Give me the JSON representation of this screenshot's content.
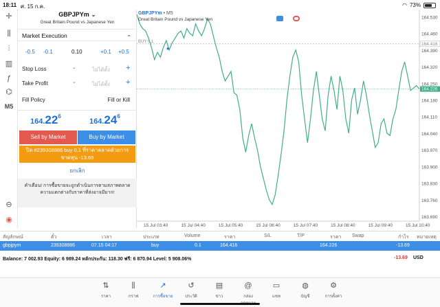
{
  "status": {
    "time": "18:11",
    "date": "ศ. 15 ก.ค.",
    "battery": "73%",
    "battery_level": 0.73
  },
  "tools": [
    {
      "name": "crosshair-icon",
      "glyph": "✛"
    },
    {
      "name": "chart-type-icon",
      "glyph": "⫼"
    },
    {
      "name": "indicators-icon",
      "glyph": "⫶"
    },
    {
      "name": "bars-icon",
      "glyph": "▥"
    },
    {
      "name": "function-icon",
      "glyph": "ƒ"
    },
    {
      "name": "objects-icon",
      "glyph": "⌬"
    },
    {
      "name": "timeframe",
      "glyph": "M5"
    }
  ],
  "order": {
    "symbol": "GBPJPYm",
    "symbol_desc": "Great Britain Pound vs Japanese Yen",
    "execution": "Market Execution",
    "volume_steps": [
      "-0.5",
      "-0.1",
      "0.10",
      "+0.1",
      "+0.5"
    ],
    "stop_loss_label": "Stop Loss",
    "take_profit_label": "Take Profit",
    "not_set": "ไม่ได้ตั้ง",
    "fill_policy_label": "Fill Policy",
    "fill_policy_value": "Fill or Kill",
    "bid_small": "164.",
    "bid_big": "22",
    "bid_sup": "6",
    "ask_small": "164.",
    "ask_big": "24",
    "ask_sup": "6",
    "sell_label": "Sell by Market",
    "buy_label": "Buy by Market",
    "close_line1": "ปิด #239308886 buy 0.1 ที่ราคาตลาดด้วยการ",
    "close_line2": "ขาดทุน -13.69",
    "cancel_label": "ยกเลิก",
    "warning": "คำเตือน! การซื้อขายจะถูกดำเนินการตามสภาพตลาด ความแตกต่างกับราคาที่ส่งอาจมีมาก!"
  },
  "chart_data": {
    "type": "line",
    "symbol": "GBPJPYm",
    "timeframe": "M5",
    "description": "Great Britain Pound vs Japanese Yen",
    "ylim": [
      163.67,
      164.56
    ],
    "yticks": [
      "164.530",
      "164.460",
      "164.390",
      "164.320",
      "164.250",
      "164.180",
      "164.110",
      "164.040",
      "163.970",
      "163.900",
      "163.830",
      "163.760",
      "163.690"
    ],
    "xticks": [
      "15 Jul 03:40",
      "15 Jul 04:40",
      "15 Jul 05:40",
      "15 Jul 06:40",
      "15 Jul 07:40",
      "15 Jul 08:40",
      "15 Jul 09:40",
      "15 Jul 10:40"
    ],
    "buy_line": {
      "label": "BUY 0.1",
      "price": "164.416",
      "value": 164.416
    },
    "current_price": {
      "label": "164.226",
      "value": 164.226
    },
    "series": [
      {
        "values": [
          164.54,
          164.5,
          164.48,
          164.47,
          164.44,
          164.4,
          164.35,
          164.38,
          164.36,
          164.4,
          164.43,
          164.39,
          164.42,
          164.44,
          164.46,
          164.47,
          164.44,
          164.48,
          164.46,
          164.45,
          164.5,
          164.47,
          164.45,
          164.48,
          164.52,
          164.5,
          164.45,
          164.4,
          164.36,
          164.3,
          164.26,
          164.28,
          164.3,
          164.21,
          164.2,
          164.14,
          164.02,
          163.96,
          164.03,
          164.08,
          164.02,
          163.97,
          163.9,
          163.85,
          163.8,
          163.76,
          163.74,
          163.78,
          163.86,
          163.95,
          164.05,
          164.18,
          164.28,
          164.36,
          164.39,
          164.34,
          164.2,
          164.1,
          164.0,
          164.1,
          164.22,
          164.3,
          164.2,
          164.1,
          164.05,
          164.2,
          164.28,
          164.22,
          164.14,
          164.28,
          164.22,
          164.1,
          164.04,
          164.18,
          164.23,
          164.12,
          164.18,
          164.26,
          164.2,
          164.12,
          164.05,
          163.98,
          164.0,
          164.08,
          164.1,
          164.04,
          164.03,
          164.1,
          164.14,
          164.22,
          164.3,
          164.34,
          164.28,
          164.22,
          164.23,
          164.24,
          164.226
        ]
      }
    ]
  },
  "table": {
    "headers": [
      "สัญลักษณ์",
      "ตั๋ว",
      "เวลา",
      "ประเภท",
      "Volume",
      "ราคา",
      "S/L",
      "T/P",
      "ราคา",
      "Swap",
      "กำไร",
      "หมายเหตุ"
    ],
    "row": {
      "symbol": "gbpjpym",
      "ticket": "239308886",
      "time": "07.15 04:17",
      "type": "buy",
      "volume": "0.1",
      "open_price": "164.416",
      "price": "164.226",
      "profit": "-13.69"
    },
    "balance": "Balance: 7 002.93 Equity: 6 989.24 หลักประกัน: 118.30 ฟรี: 6 870.94 Level: 5 908.06%",
    "total_pl": "-13.69",
    "currency": "USD"
  },
  "tabs": [
    {
      "name": "tab-quotes",
      "glyph": "⇅",
      "label": "ราคา"
    },
    {
      "name": "tab-chart",
      "glyph": "⫼",
      "label": "กราฟ"
    },
    {
      "name": "tab-trade",
      "glyph": "↗",
      "label": "การซื้อขาย"
    },
    {
      "name": "tab-history",
      "glyph": "↺",
      "label": "ประวัติ"
    },
    {
      "name": "tab-news",
      "glyph": "▤",
      "label": "ข่าว"
    },
    {
      "name": "tab-mailbox",
      "glyph": "@",
      "label": "กล่องจดหมาย"
    },
    {
      "name": "tab-chat",
      "glyph": "▭",
      "label": "แชท"
    },
    {
      "name": "tab-accounts",
      "glyph": "◍",
      "label": "บัญชี"
    },
    {
      "name": "tab-settings",
      "glyph": "⚙",
      "label": "การตั้งค่า"
    }
  ]
}
